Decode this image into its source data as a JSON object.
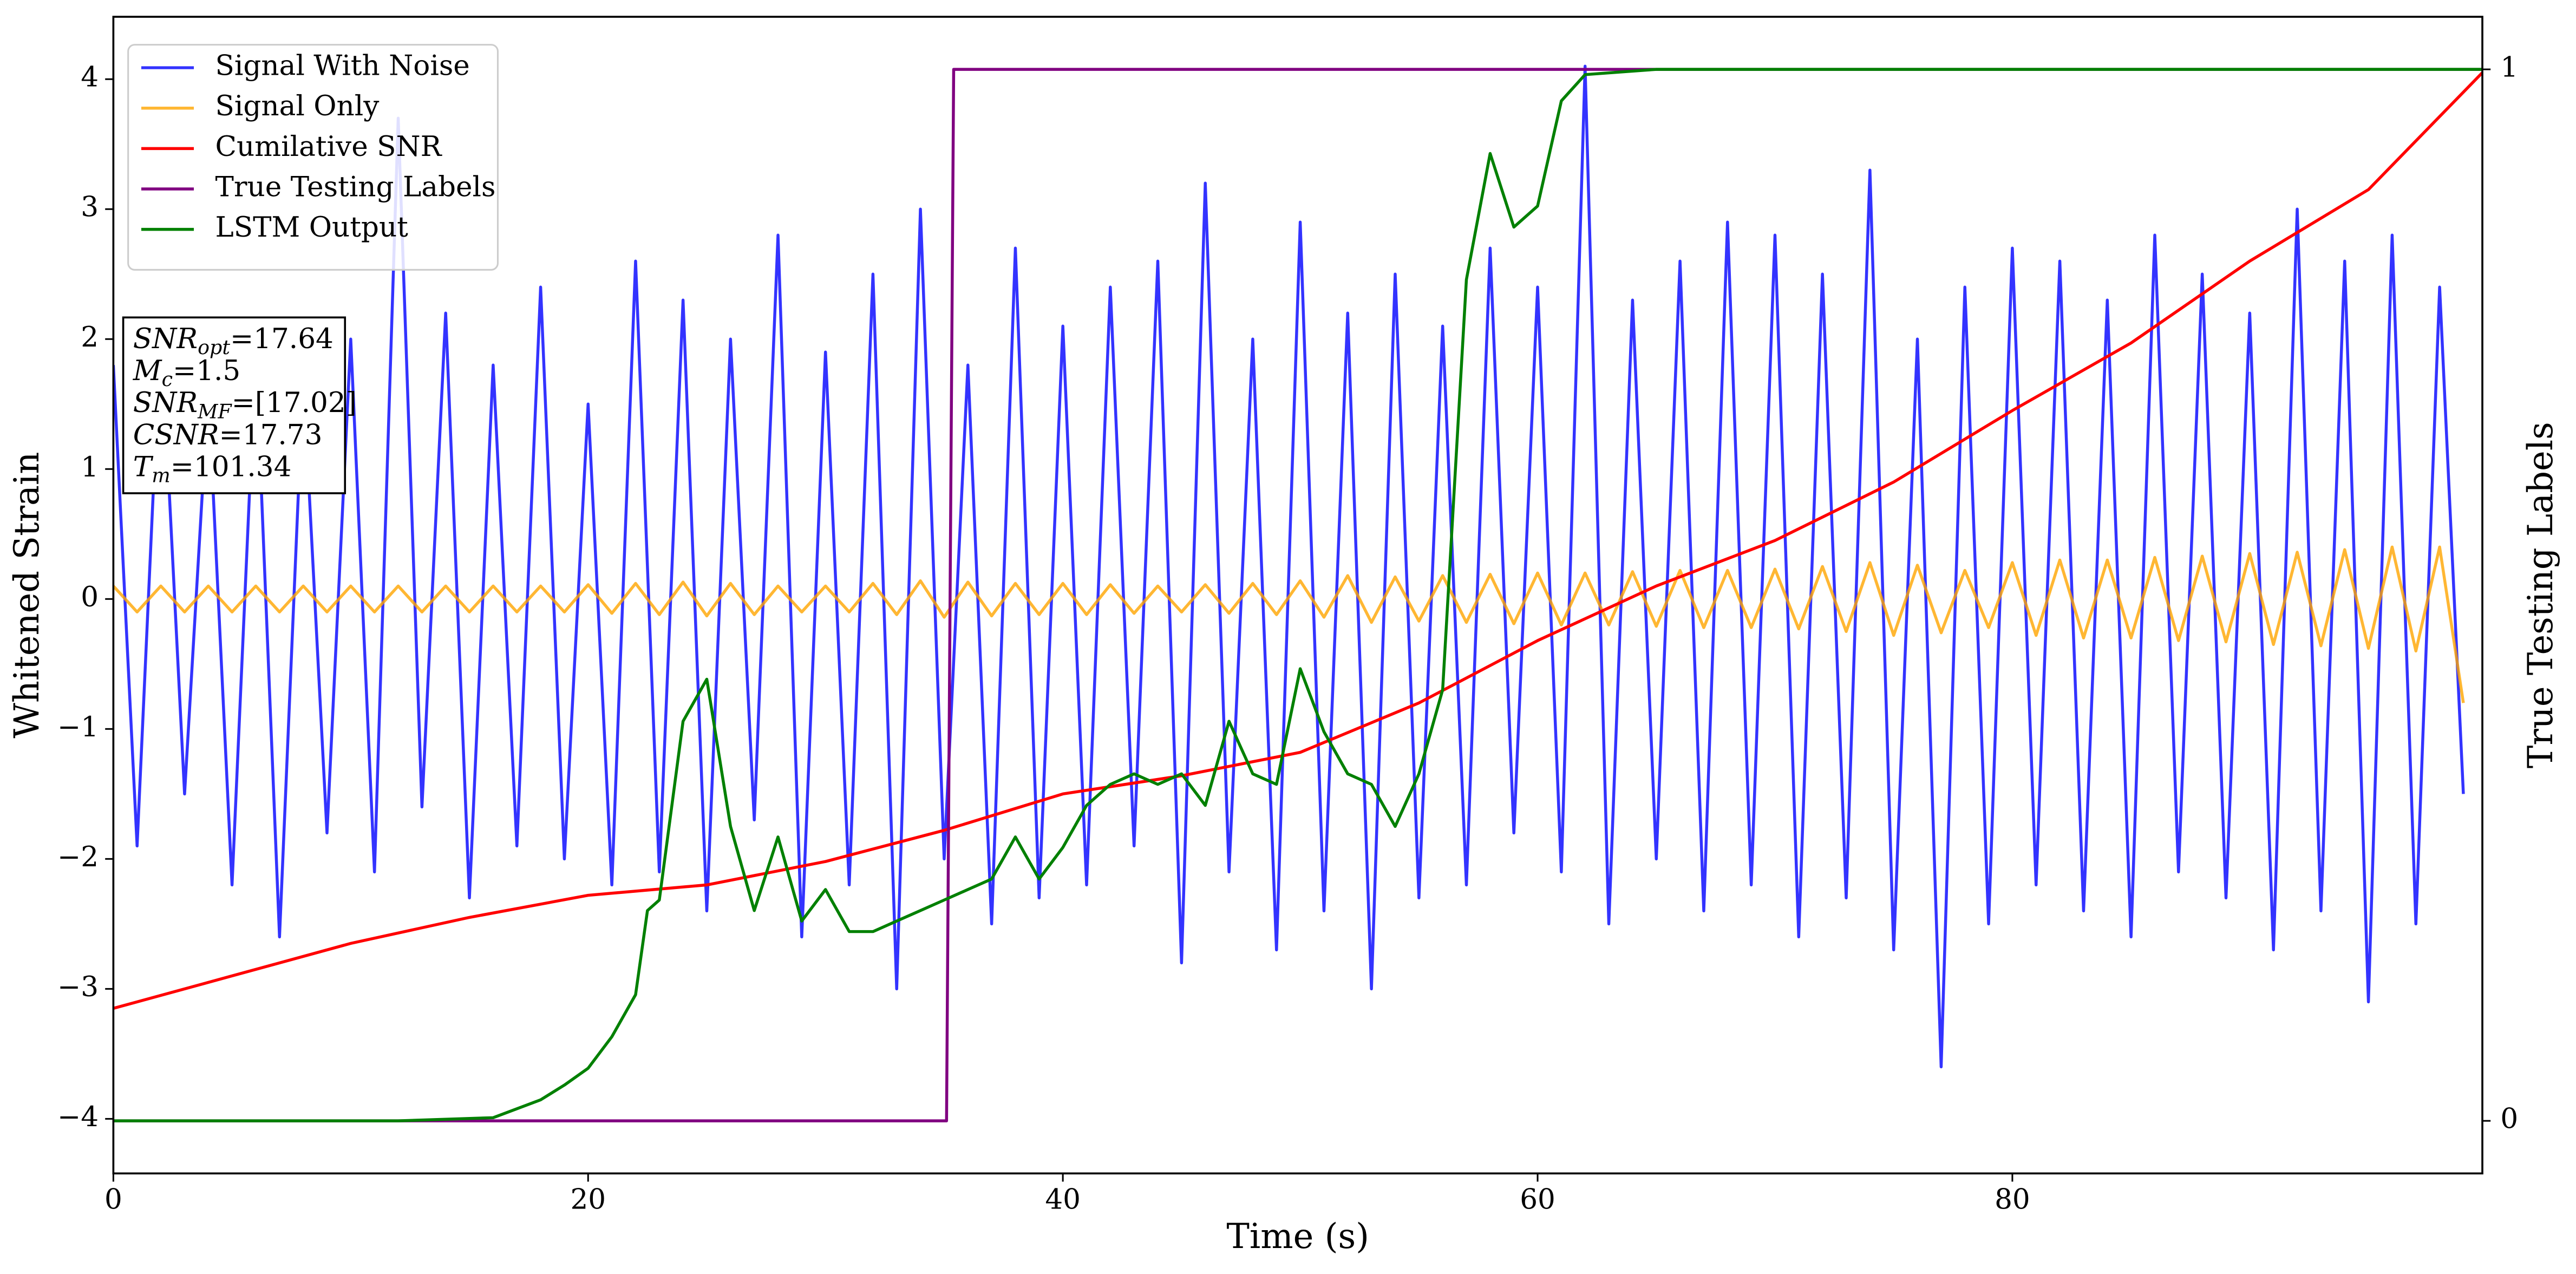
{
  "chart_data": {
    "type": "line",
    "xlabel": "Time (s)",
    "ylabel": "Whitened Strain",
    "y2label": "True Testing Labels",
    "xlim": [
      0,
      99.8
    ],
    "ylim": [
      -4.42,
      4.48
    ],
    "y2lim": [
      -0.05,
      1.05
    ],
    "xticks": [
      0,
      20,
      40,
      60,
      80
    ],
    "yticks": [
      {
        "value": -4,
        "label": "−4"
      },
      {
        "value": -3,
        "label": "−3"
      },
      {
        "value": -2,
        "label": "−2"
      },
      {
        "value": -1,
        "label": "−1"
      },
      0,
      1,
      2,
      3,
      4
    ],
    "y2ticks": [
      0,
      1
    ],
    "grid": false,
    "legend": "upper left",
    "alpha": 0.8,
    "annotations": [
      {
        "symbol": "SNR",
        "subscript": "opt",
        "text": "=17.64"
      },
      {
        "symbol": "M",
        "subscript": "c",
        "text": "=1.5"
      },
      {
        "symbol": "SNR",
        "subscript": "MF",
        "text": "=[17.02]"
      },
      {
        "symbol": "CSNR",
        "text": "=17.73"
      },
      {
        "symbol": "T",
        "subscript": "m",
        "text": "=101.34"
      }
    ],
    "series": [
      {
        "name": "Signal With Noise",
        "color": "#0000ff",
        "x": [
          0,
          1,
          2,
          3,
          4,
          5,
          6,
          7,
          8,
          9,
          10,
          11,
          12,
          13,
          14,
          15,
          16,
          17,
          18,
          19,
          20,
          21,
          22,
          23,
          24,
          25,
          26,
          27,
          28,
          29,
          30,
          31,
          32,
          33,
          34,
          35,
          36,
          37,
          38,
          39,
          40,
          41,
          42,
          43,
          44,
          45,
          46,
          47,
          48,
          49,
          50,
          51,
          52,
          53,
          54,
          55,
          56,
          57,
          58,
          59,
          60,
          61,
          62,
          63,
          64,
          65,
          66,
          67,
          68,
          69,
          70,
          71,
          72,
          73,
          74,
          75,
          76,
          77,
          78,
          79,
          80,
          81,
          82,
          83,
          84,
          85,
          86,
          87,
          88,
          89,
          90,
          91,
          92,
          93,
          94,
          95,
          96,
          97,
          98,
          99
        ],
        "values": [
          1.8,
          -1.9,
          2.1,
          -1.5,
          1.6,
          -2.2,
          1.9,
          -2.6,
          1.7,
          -1.8,
          2.0,
          -2.1,
          3.7,
          -1.6,
          2.2,
          -2.3,
          1.8,
          -1.9,
          2.4,
          -2.0,
          1.5,
          -2.2,
          2.6,
          -2.1,
          2.3,
          -2.4,
          2.0,
          -1.7,
          2.8,
          -2.6,
          1.9,
          -2.2,
          2.5,
          -3.0,
          3.0,
          -2.0,
          1.8,
          -2.5,
          2.7,
          -2.3,
          2.1,
          -2.2,
          2.4,
          -1.9,
          2.6,
          -2.8,
          3.2,
          -2.1,
          2.0,
          -2.7,
          2.9,
          -2.4,
          2.2,
          -3.0,
          2.5,
          -2.3,
          2.1,
          -2.2,
          2.7,
          -1.8,
          2.4,
          -2.1,
          4.1,
          -2.5,
          2.3,
          -2.0,
          2.6,
          -2.4,
          2.9,
          -2.2,
          2.8,
          -2.6,
          2.5,
          -2.3,
          3.3,
          -2.7,
          2.0,
          -3.6,
          2.4,
          -2.5,
          2.7,
          -2.2,
          2.6,
          -2.4,
          2.3,
          -2.6,
          2.8,
          -2.1,
          2.5,
          -2.3,
          2.2,
          -2.7,
          3.0,
          -2.4,
          2.6,
          -3.1,
          2.8,
          -2.5,
          2.4,
          -1.5
        ]
      },
      {
        "name": "Signal Only",
        "color": "#ffa500",
        "x": [
          0,
          1,
          2,
          3,
          4,
          5,
          6,
          7,
          8,
          9,
          10,
          11,
          12,
          13,
          14,
          15,
          16,
          17,
          18,
          19,
          20,
          21,
          22,
          23,
          24,
          25,
          26,
          27,
          28,
          29,
          30,
          31,
          32,
          33,
          34,
          35,
          36,
          37,
          38,
          39,
          40,
          41,
          42,
          43,
          44,
          45,
          46,
          47,
          48,
          49,
          50,
          51,
          52,
          53,
          54,
          55,
          56,
          57,
          58,
          59,
          60,
          61,
          62,
          63,
          64,
          65,
          66,
          67,
          68,
          69,
          70,
          71,
          72,
          73,
          74,
          75,
          76,
          77,
          78,
          79,
          80,
          81,
          82,
          83,
          84,
          85,
          86,
          87,
          88,
          89,
          90,
          91,
          92,
          93,
          94,
          95,
          96,
          97,
          98,
          99
        ],
        "values": [
          0.1,
          -0.1,
          0.1,
          -0.1,
          0.1,
          -0.1,
          0.1,
          -0.1,
          0.1,
          -0.1,
          0.1,
          -0.1,
          0.1,
          -0.1,
          0.1,
          -0.1,
          0.1,
          -0.1,
          0.1,
          -0.1,
          0.11,
          -0.11,
          0.12,
          -0.12,
          0.13,
          -0.13,
          0.12,
          -0.12,
          0.1,
          -0.1,
          0.1,
          -0.1,
          0.12,
          -0.12,
          0.14,
          -0.14,
          0.13,
          -0.13,
          0.12,
          -0.12,
          0.12,
          -0.12,
          0.11,
          -0.11,
          0.1,
          -0.1,
          0.11,
          -0.11,
          0.12,
          -0.12,
          0.14,
          -0.14,
          0.18,
          -0.18,
          0.17,
          -0.17,
          0.18,
          -0.18,
          0.19,
          -0.19,
          0.2,
          -0.2,
          0.2,
          -0.2,
          0.21,
          -0.21,
          0.22,
          -0.22,
          0.22,
          -0.22,
          0.23,
          -0.23,
          0.25,
          -0.25,
          0.28,
          -0.28,
          0.26,
          -0.26,
          0.22,
          -0.22,
          0.28,
          -0.28,
          0.3,
          -0.3,
          0.3,
          -0.3,
          0.32,
          -0.32,
          0.33,
          -0.33,
          0.35,
          -0.35,
          0.36,
          -0.36,
          0.38,
          -0.38,
          0.4,
          -0.4,
          0.4,
          -0.8
        ]
      },
      {
        "name": "Cumilative SNR",
        "color": "#ff0000",
        "x": [
          0,
          5,
          10,
          15,
          20,
          25,
          30,
          35,
          40,
          45,
          50,
          55,
          60,
          65,
          70,
          75,
          80,
          85,
          90,
          95,
          99.8
        ],
        "values": [
          -3.15,
          -2.9,
          -2.65,
          -2.45,
          -2.28,
          -2.2,
          -2.02,
          -1.78,
          -1.5,
          -1.36,
          -1.18,
          -0.8,
          -0.32,
          0.1,
          0.45,
          0.9,
          1.45,
          1.97,
          2.6,
          3.15,
          4.05
        ]
      },
      {
        "name": "True Testing Labels",
        "color": "#800080",
        "axis": "y2",
        "x": [
          0,
          35.1,
          35.4,
          99.8
        ],
        "values": [
          0,
          0,
          1,
          1
        ]
      },
      {
        "name": "LSTM Output",
        "color": "#008000",
        "axis": "y2",
        "x": [
          0,
          12,
          16,
          18,
          19,
          20,
          21,
          22,
          22.5,
          23,
          24,
          25,
          26,
          27,
          28,
          29,
          30,
          31,
          32,
          33,
          34,
          35,
          36,
          37,
          38,
          39,
          40,
          41,
          42,
          43,
          44,
          45,
          46,
          47,
          48,
          49,
          50,
          51,
          52,
          53,
          54,
          55,
          56,
          57,
          58,
          59,
          60,
          61,
          62,
          65,
          99.8
        ],
        "values": [
          0,
          0,
          0.003,
          0.02,
          0.034,
          0.05,
          0.08,
          0.12,
          0.2,
          0.21,
          0.38,
          0.42,
          0.28,
          0.2,
          0.27,
          0.19,
          0.22,
          0.18,
          0.18,
          0.19,
          0.2,
          0.21,
          0.22,
          0.23,
          0.27,
          0.23,
          0.26,
          0.3,
          0.32,
          0.33,
          0.32,
          0.33,
          0.3,
          0.38,
          0.33,
          0.32,
          0.43,
          0.37,
          0.33,
          0.32,
          0.28,
          0.33,
          0.41,
          0.8,
          0.92,
          0.85,
          0.87,
          0.97,
          0.995,
          1,
          1
        ]
      }
    ]
  }
}
